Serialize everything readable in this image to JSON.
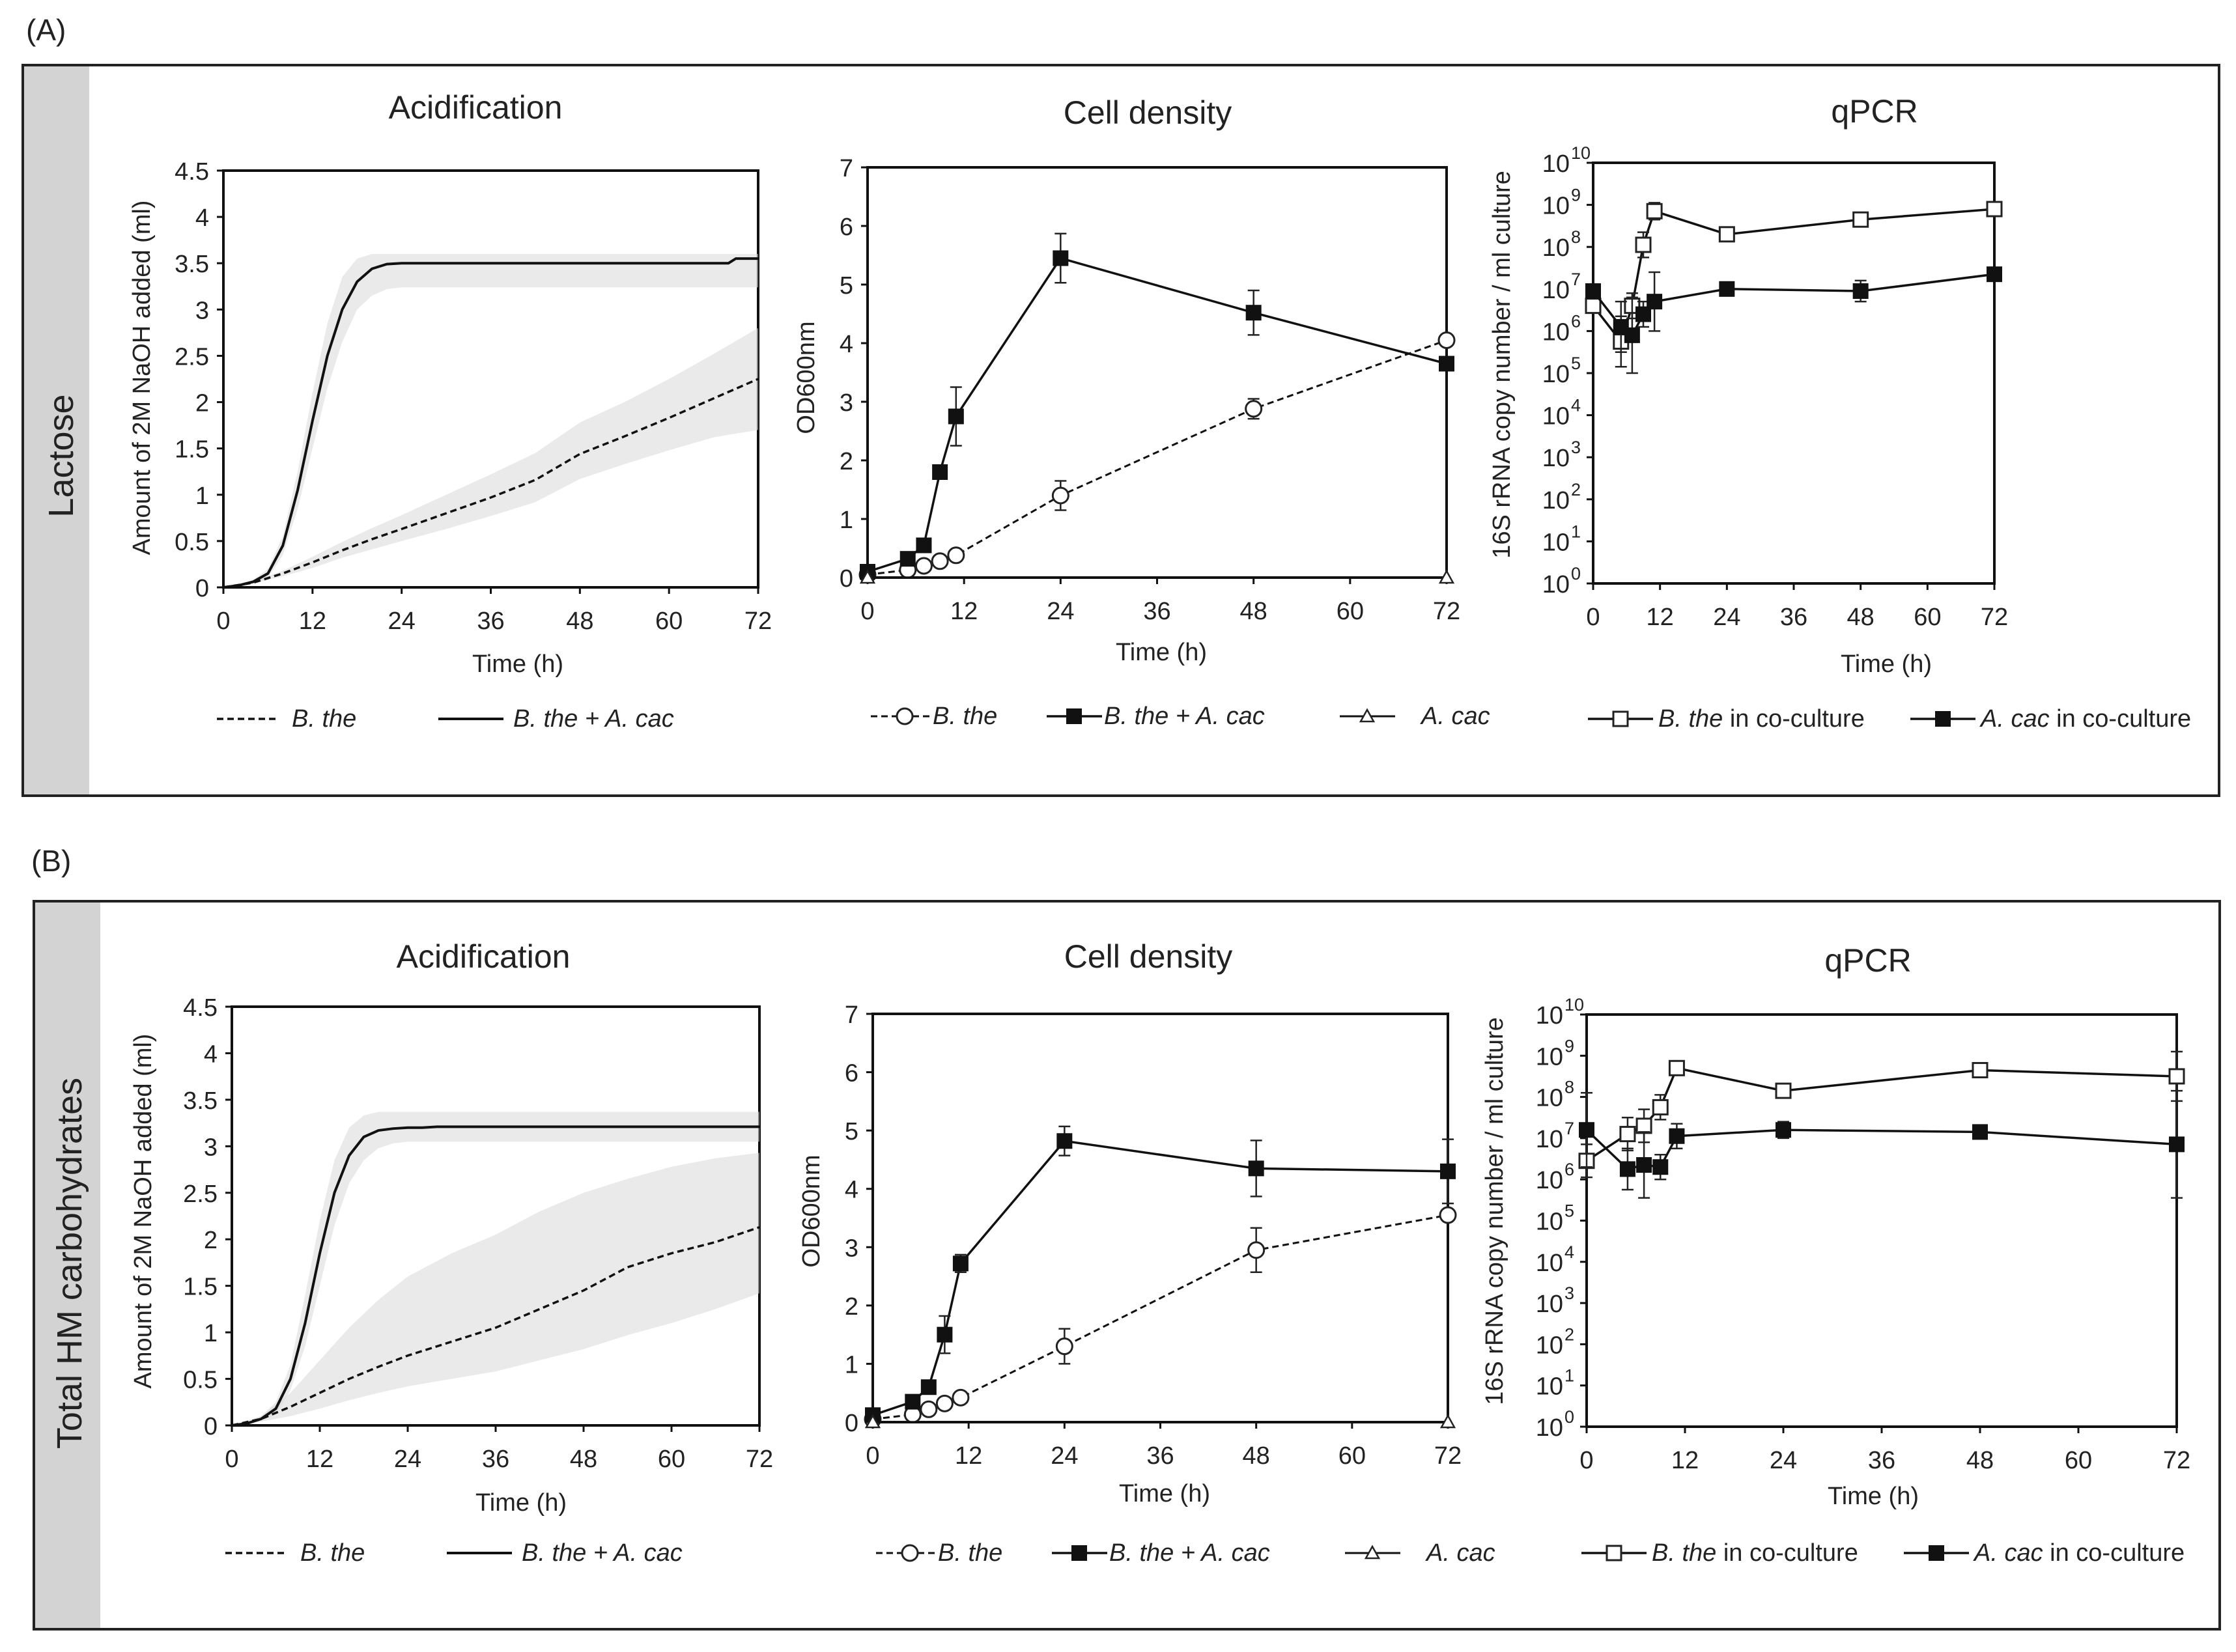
{
  "figure": {
    "panels": [
      {
        "letter": "(A)",
        "side_label": "Lactose",
        "acidification": {
          "title": "Acidification",
          "ylabel": "Amount of 2M NaOH added (ml)",
          "xlabel": "Time (h)",
          "legend": [
            "B. the",
            "B. the + A. cac"
          ]
        },
        "cell_density": {
          "title": "Cell density",
          "ylabel": "OD600nm",
          "xlabel": "Time (h)",
          "legend": [
            "B. the",
            "B. the + A. cac",
            "A. cac"
          ]
        },
        "qpcr": {
          "title": "qPCR",
          "ylabel": "16S rRNA copy number / ml culture",
          "xlabel": "Time (h)",
          "legend": [
            {
              "species": "B. the",
              "suffix": " in co-culture"
            },
            {
              "species": "A. cac",
              "suffix": " in co-culture"
            }
          ]
        }
      },
      {
        "letter": "(B)",
        "side_label": "Total HM carbohydrates",
        "acidification": {
          "title": "Acidification",
          "ylabel": "Amount of 2M NaOH added (ml)",
          "xlabel": "Time (h)",
          "legend": [
            "B. the",
            "B. the + A. cac"
          ]
        },
        "cell_density": {
          "title": "Cell density",
          "ylabel": "OD600nm",
          "xlabel": "Time (h)",
          "legend": [
            "B. the",
            "B. the + A. cac",
            "A. cac"
          ]
        },
        "qpcr": {
          "title": "qPCR",
          "ylabel": "16S rRNA copy number / ml culture",
          "xlabel": "Time (h)",
          "legend": [
            {
              "species": "B. the",
              "suffix": " in co-culture"
            },
            {
              "species": "A. cac",
              "suffix": " in co-culture"
            }
          ]
        }
      }
    ]
  },
  "chart_data": [
    {
      "id": "A-acidification",
      "type": "line",
      "title": "Acidification",
      "xlabel": "Time (h)",
      "ylabel": "Amount of 2M NaOH added (ml)",
      "xlim": [
        0,
        72
      ],
      "ylim": [
        0,
        4.5
      ],
      "xticks": [
        0,
        12,
        24,
        36,
        48,
        60,
        72
      ],
      "yticks": [
        "0",
        "0.5",
        "1",
        "1.5",
        "2",
        "2.5",
        "3",
        "3.5",
        "4",
        "4.5"
      ],
      "series": [
        {
          "name": "B. the",
          "style": "dashed",
          "x": [
            0,
            4,
            6,
            8,
            12,
            16,
            20,
            24,
            30,
            36,
            42,
            48,
            54,
            60,
            66,
            72
          ],
          "y": [
            0,
            0.05,
            0.1,
            0.15,
            0.27,
            0.4,
            0.52,
            0.63,
            0.8,
            0.97,
            1.16,
            1.44,
            1.63,
            1.83,
            2.04,
            2.25
          ],
          "band_upper": [
            0,
            0.06,
            0.12,
            0.18,
            0.33,
            0.49,
            0.64,
            0.78,
            1.0,
            1.22,
            1.45,
            1.78,
            2.0,
            2.25,
            2.52,
            2.8
          ],
          "band_lower": [
            0,
            0.04,
            0.08,
            0.12,
            0.21,
            0.32,
            0.41,
            0.5,
            0.63,
            0.77,
            0.92,
            1.17,
            1.33,
            1.48,
            1.62,
            1.7
          ]
        },
        {
          "name": "B. the + A. cac",
          "style": "solid",
          "x": [
            0,
            2,
            4,
            6,
            8,
            10,
            12,
            14,
            16,
            18,
            20,
            22,
            24,
            26,
            28,
            30,
            36,
            48,
            60,
            68,
            69,
            72
          ],
          "y": [
            0,
            0.02,
            0.06,
            0.15,
            0.45,
            1.05,
            1.8,
            2.5,
            3.0,
            3.3,
            3.44,
            3.49,
            3.5,
            3.5,
            3.5,
            3.5,
            3.5,
            3.5,
            3.5,
            3.5,
            3.55,
            3.55
          ],
          "band_upper": [
            0,
            0.03,
            0.08,
            0.2,
            0.55,
            1.25,
            2.1,
            2.85,
            3.35,
            3.55,
            3.6,
            3.6,
            3.6,
            3.6,
            3.6,
            3.6,
            3.6,
            3.6,
            3.6,
            3.6,
            3.6,
            3.6
          ],
          "band_lower": [
            0,
            0.01,
            0.04,
            0.1,
            0.35,
            0.85,
            1.5,
            2.15,
            2.65,
            3.0,
            3.15,
            3.22,
            3.24,
            3.24,
            3.24,
            3.24,
            3.24,
            3.24,
            3.24,
            3.24,
            3.24,
            3.24
          ]
        }
      ]
    },
    {
      "id": "A-cell-density",
      "type": "line",
      "title": "Cell density",
      "xlabel": "Time (h)",
      "ylabel": "OD600nm",
      "xlim": [
        0,
        72
      ],
      "ylim": [
        0,
        7
      ],
      "xticks": [
        0,
        12,
        24,
        36,
        48,
        60,
        72
      ],
      "yticks": [
        0,
        1,
        2,
        3,
        4,
        5,
        6,
        7
      ],
      "series": [
        {
          "name": "B. the",
          "style": "dashed",
          "marker": "circle-open",
          "x": [
            0,
            5,
            7,
            9,
            11,
            24,
            48,
            72
          ],
          "y": [
            0.05,
            0.13,
            0.2,
            0.28,
            0.38,
            1.4,
            2.88,
            4.05
          ],
          "err": [
            0,
            0,
            0,
            0,
            0,
            0.25,
            0.17,
            0
          ]
        },
        {
          "name": "B. the + A. cac",
          "style": "solid",
          "marker": "square-filled",
          "x": [
            0,
            5,
            7,
            9,
            11,
            24,
            48,
            72
          ],
          "y": [
            0.1,
            0.32,
            0.55,
            1.8,
            2.75,
            5.45,
            4.52,
            3.65
          ],
          "err": [
            0,
            0,
            0,
            0,
            0.5,
            0.42,
            0.38,
            0
          ]
        },
        {
          "name": "A. cac",
          "style": "solid",
          "marker": "triangle-open",
          "x": [
            0,
            72
          ],
          "y": [
            0,
            0
          ],
          "err": [
            0,
            0
          ]
        }
      ]
    },
    {
      "id": "A-qpcr",
      "type": "line",
      "title": "qPCR",
      "xlabel": "Time (h)",
      "ylabel": "16S rRNA copy number / ml culture",
      "xlim": [
        0,
        72
      ],
      "ylim_log10": [
        0,
        10
      ],
      "yscale": "log",
      "xticks": [
        0,
        12,
        24,
        36,
        48,
        60,
        72
      ],
      "ytick_exponents": [
        0,
        1,
        2,
        3,
        4,
        5,
        6,
        7,
        8,
        9,
        10
      ],
      "series": [
        {
          "name": "B. the in co-culture",
          "marker": "square-open",
          "x": [
            0,
            5,
            7,
            9,
            11,
            24,
            48,
            72
          ],
          "log10_y": [
            6.6,
            5.75,
            6.6,
            8.05,
            8.85,
            8.3,
            8.65,
            8.9
          ],
          "log10_err": [
            0,
            0.6,
            0.3,
            0.3,
            0.2,
            0,
            0,
            0
          ]
        },
        {
          "name": "A. cac in co-culture",
          "marker": "square-filled",
          "x": [
            0,
            5,
            7,
            9,
            11,
            24,
            48,
            72
          ],
          "log10_y": [
            6.95,
            6.1,
            5.9,
            6.4,
            6.7,
            7.0,
            6.95,
            7.35
          ],
          "log10_err": [
            0,
            0.6,
            0.9,
            0.3,
            0.7,
            0,
            0.25,
            0
          ]
        }
      ]
    },
    {
      "id": "B-acidification",
      "type": "line",
      "title": "Acidification",
      "xlabel": "Time (h)",
      "ylabel": "Amount of 2M NaOH added (ml)",
      "xlim": [
        0,
        72
      ],
      "ylim": [
        0,
        4.5
      ],
      "xticks": [
        0,
        12,
        24,
        36,
        48,
        60,
        72
      ],
      "yticks": [
        "0",
        "0.5",
        "1",
        "1.5",
        "2",
        "2.5",
        "3",
        "3.5",
        "4",
        "4.5"
      ],
      "series": [
        {
          "name": "B. the",
          "style": "dashed",
          "x": [
            0,
            4,
            8,
            12,
            16,
            20,
            24,
            30,
            36,
            42,
            48,
            54,
            60,
            66,
            72
          ],
          "y": [
            0,
            0.07,
            0.2,
            0.35,
            0.5,
            0.63,
            0.75,
            0.9,
            1.05,
            1.25,
            1.45,
            1.7,
            1.85,
            1.97,
            2.13
          ],
          "band_upper": [
            0,
            0.1,
            0.35,
            0.7,
            1.05,
            1.35,
            1.6,
            1.85,
            2.05,
            2.3,
            2.5,
            2.65,
            2.78,
            2.87,
            2.93
          ],
          "band_lower": [
            0,
            0.04,
            0.1,
            0.18,
            0.27,
            0.35,
            0.42,
            0.5,
            0.58,
            0.7,
            0.82,
            0.97,
            1.1,
            1.25,
            1.42
          ]
        },
        {
          "name": "B. the + A. cac",
          "style": "solid",
          "x": [
            0,
            2,
            4,
            6,
            8,
            10,
            12,
            14,
            16,
            18,
            20,
            22,
            24,
            26,
            28,
            36,
            48,
            60,
            72
          ],
          "y": [
            0,
            0.02,
            0.07,
            0.18,
            0.5,
            1.1,
            1.85,
            2.5,
            2.9,
            3.1,
            3.17,
            3.19,
            3.2,
            3.2,
            3.21,
            3.21,
            3.21,
            3.21,
            3.21
          ],
          "band_upper": [
            0,
            0.03,
            0.1,
            0.25,
            0.65,
            1.4,
            2.2,
            2.85,
            3.2,
            3.33,
            3.37,
            3.37,
            3.37,
            3.37,
            3.37,
            3.37,
            3.37,
            3.37,
            3.37
          ],
          "band_lower": [
            0,
            0.01,
            0.05,
            0.12,
            0.38,
            0.85,
            1.5,
            2.15,
            2.6,
            2.85,
            2.98,
            3.03,
            3.05,
            3.05,
            3.05,
            3.05,
            3.05,
            3.05,
            3.05
          ]
        }
      ]
    },
    {
      "id": "B-cell-density",
      "type": "line",
      "title": "Cell density",
      "xlabel": "Time (h)",
      "ylabel": "OD600nm",
      "xlim": [
        0,
        72
      ],
      "ylim": [
        0,
        7
      ],
      "xticks": [
        0,
        12,
        24,
        36,
        48,
        60,
        72
      ],
      "yticks": [
        0,
        1,
        2,
        3,
        4,
        5,
        6,
        7
      ],
      "series": [
        {
          "name": "B. the",
          "style": "dashed",
          "marker": "circle-open",
          "x": [
            0,
            5,
            7,
            9,
            11,
            24,
            48,
            72
          ],
          "y": [
            0.05,
            0.13,
            0.22,
            0.32,
            0.42,
            1.3,
            2.95,
            3.55
          ],
          "err": [
            0,
            0,
            0,
            0,
            0,
            0.3,
            0.38,
            0
          ]
        },
        {
          "name": "B. the + A. cac",
          "style": "solid",
          "marker": "square-filled",
          "x": [
            0,
            5,
            7,
            9,
            11,
            24,
            48,
            72
          ],
          "y": [
            0.12,
            0.35,
            0.6,
            1.5,
            2.72,
            4.82,
            4.35,
            4.3
          ],
          "err": [
            0,
            0,
            0,
            0.32,
            0.15,
            0.25,
            0.48,
            0.55
          ]
        },
        {
          "name": "A. cac",
          "style": "solid",
          "marker": "triangle-open",
          "x": [
            0,
            72
          ],
          "y": [
            0,
            0
          ],
          "err": [
            0,
            0
          ]
        }
      ]
    },
    {
      "id": "B-qpcr",
      "type": "line",
      "title": "qPCR",
      "xlabel": "Time (h)",
      "ylabel": "16S rRNA copy number / ml culture",
      "xlim": [
        0,
        72
      ],
      "ylim_log10": [
        0,
        10
      ],
      "yscale": "log",
      "xticks": [
        0,
        12,
        24,
        36,
        48,
        60,
        72
      ],
      "ytick_exponents": [
        0,
        1,
        2,
        3,
        4,
        5,
        6,
        7,
        8,
        9,
        10
      ],
      "series": [
        {
          "name": "B. the in co-culture",
          "marker": "square-open",
          "x": [
            0,
            5,
            7,
            9,
            11,
            24,
            48,
            72
          ],
          "log10_y": [
            6.45,
            7.1,
            7.3,
            7.75,
            8.7,
            8.15,
            8.65,
            8.5
          ],
          "log10_err": [
            0.4,
            0.4,
            0.4,
            0.3,
            0.1,
            0,
            0,
            0.6
          ]
        },
        {
          "name": "A. cac in co-culture",
          "marker": "square-filled",
          "x": [
            0,
            5,
            7,
            9,
            11,
            24,
            48,
            72
          ],
          "log10_y": [
            7.2,
            6.25,
            6.35,
            6.3,
            7.05,
            7.2,
            7.15,
            6.85
          ],
          "log10_err": [
            0.9,
            0.5,
            0.8,
            0.3,
            0.3,
            0.2,
            0.1,
            1.3
          ]
        }
      ]
    }
  ]
}
